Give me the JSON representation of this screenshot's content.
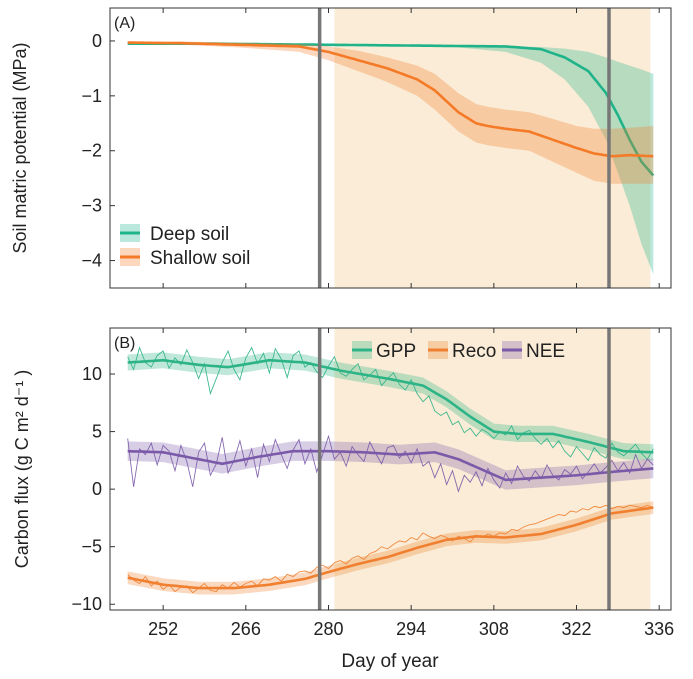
{
  "figure": {
    "xlabel": "Day of year"
  },
  "colors": {
    "deep": "#1fb38a",
    "shallow": "#f47a28",
    "gpp": "#2cb386",
    "reco": "#f08030",
    "nee": "#7a5aa8",
    "shade": "#faecd6",
    "vline": "#777777"
  },
  "chart_data": [
    {
      "type": "line",
      "panel": "(A)",
      "ylabel": "Soil matric potential (MPa)",
      "xlim": [
        243,
        338
      ],
      "ylim": [
        -4.5,
        0.6
      ],
      "xticks": [
        252,
        266,
        280,
        294,
        308,
        322,
        336
      ],
      "yticks": [
        0,
        -1,
        -2,
        -3,
        -4
      ],
      "ytick_labels": [
        "0",
        "−1",
        "−2",
        "−3",
        "−4"
      ],
      "shaded_period": [
        281,
        334.5
      ],
      "vlines": [
        278.5,
        327.5
      ],
      "legend": {
        "position": "bottom-left",
        "entries": [
          "Deep soil",
          "Shallow soil"
        ]
      },
      "series": [
        {
          "name": "Deep soil",
          "x": [
            246,
            260,
            270,
            280,
            290,
            300,
            310,
            316,
            320,
            324,
            327,
            329,
            331,
            333,
            335
          ],
          "y": [
            -0.05,
            -0.05,
            -0.06,
            -0.07,
            -0.08,
            -0.09,
            -0.1,
            -0.15,
            -0.3,
            -0.55,
            -0.95,
            -1.35,
            -1.8,
            -2.2,
            -2.45
          ],
          "lower": [
            -0.05,
            -0.05,
            -0.06,
            -0.07,
            -0.08,
            -0.1,
            -0.2,
            -0.4,
            -0.7,
            -1.2,
            -1.8,
            -2.4,
            -3.0,
            -3.7,
            -4.25
          ],
          "upper": [
            -0.05,
            -0.05,
            -0.06,
            -0.07,
            -0.08,
            -0.08,
            -0.09,
            -0.11,
            -0.14,
            -0.2,
            -0.3,
            -0.38,
            -0.45,
            -0.52,
            -0.6
          ]
        },
        {
          "name": "Shallow soil",
          "x": [
            246,
            255,
            265,
            275,
            280,
            285,
            290,
            295,
            298,
            302,
            305,
            307,
            310,
            314,
            318,
            322,
            325,
            328,
            331,
            335
          ],
          "y": [
            -0.03,
            -0.04,
            -0.07,
            -0.1,
            -0.2,
            -0.35,
            -0.5,
            -0.7,
            -0.9,
            -1.3,
            -1.5,
            -1.55,
            -1.6,
            -1.65,
            -1.8,
            -1.95,
            -2.05,
            -2.1,
            -2.08,
            -2.1
          ],
          "lower": [
            -0.05,
            -0.07,
            -0.12,
            -0.2,
            -0.35,
            -0.55,
            -0.75,
            -1.0,
            -1.25,
            -1.65,
            -1.85,
            -1.9,
            -1.95,
            -2.0,
            -2.2,
            -2.4,
            -2.55,
            -2.6,
            -2.6,
            -2.6
          ],
          "upper": [
            -0.01,
            -0.01,
            -0.03,
            -0.05,
            -0.1,
            -0.18,
            -0.3,
            -0.45,
            -0.6,
            -0.95,
            -1.15,
            -1.2,
            -1.25,
            -1.3,
            -1.42,
            -1.55,
            -1.6,
            -1.6,
            -1.58,
            -1.55
          ]
        }
      ]
    },
    {
      "type": "line",
      "panel": "(B)",
      "ylabel": "Carbon flux (g C m² d⁻¹ )",
      "xlabel": "Day of year",
      "xlim": [
        243,
        338
      ],
      "ylim": [
        -10.5,
        14
      ],
      "xticks": [
        252,
        266,
        280,
        294,
        308,
        322,
        336
      ],
      "yticks": [
        10,
        5,
        0,
        -5,
        -10
      ],
      "ytick_labels": [
        "10",
        "5",
        "0",
        "−5",
        "−10"
      ],
      "shaded_period": [
        281,
        334.5
      ],
      "vlines": [
        278.5,
        327.5
      ],
      "legend": {
        "position": "top-right",
        "entries": [
          "GPP",
          "Reco",
          "NEE"
        ]
      },
      "series": [
        {
          "name": "GPP",
          "band": 0.7,
          "x": [
            246,
            252,
            258,
            263,
            270,
            276,
            282,
            290,
            296,
            300,
            304,
            308,
            312,
            318,
            324,
            330,
            335
          ],
          "y": [
            11.0,
            11.2,
            10.8,
            10.6,
            11.2,
            11.0,
            10.3,
            9.6,
            9.0,
            7.8,
            6.3,
            5.0,
            4.8,
            4.8,
            4.1,
            3.3,
            3.2
          ],
          "daily": [
            11.5,
            10.4,
            12.3,
            11.0,
            10.6,
            11.6,
            12.0,
            10.5,
            11.4,
            10.8,
            12.1,
            11.0,
            9.6,
            10.9,
            8.3,
            9.6,
            11.0,
            12.0,
            10.4,
            9.5,
            11.4,
            12.3,
            10.9,
            11.8,
            10.1,
            12.2,
            11.3,
            9.7,
            11.6,
            12.0,
            10.6,
            11.0,
            10.2,
            9.7,
            10.7,
            11.5,
            10.1,
            9.8,
            10.4,
            10.9,
            9.5,
            9.9,
            10.4,
            9.0,
            9.6,
            10.1,
            9.1,
            8.6,
            9.5,
            8.3,
            7.6,
            8.1,
            6.8,
            6.4,
            6.7,
            5.6,
            5.9,
            4.9,
            5.3,
            4.6,
            5.2,
            4.9,
            4.4,
            5.0,
            4.7,
            5.5,
            4.3,
            4.9,
            5.1,
            4.4,
            3.9,
            4.4,
            3.6,
            4.2,
            3.3,
            2.8,
            3.7,
            3.1,
            2.5,
            3.6,
            3.0,
            2.7,
            4.0,
            3.2,
            2.9,
            3.4,
            3.9,
            3.1,
            2.6,
            3.5
          ]
        },
        {
          "name": "Reco",
          "band": 0.55,
          "x": [
            246,
            252,
            258,
            264,
            270,
            276,
            280,
            285,
            290,
            295,
            300,
            305,
            310,
            316,
            322,
            328,
            335
          ],
          "y": [
            -7.7,
            -8.3,
            -8.6,
            -8.6,
            -8.3,
            -7.8,
            -7.2,
            -6.5,
            -5.9,
            -5.1,
            -4.4,
            -4.1,
            -4.2,
            -3.9,
            -3.1,
            -2.1,
            -1.6
          ],
          "daily": [
            -7.4,
            -7.9,
            -8.2,
            -7.6,
            -8.4,
            -8.0,
            -8.7,
            -8.3,
            -8.9,
            -8.5,
            -8.4,
            -9.0,
            -8.6,
            -8.2,
            -8.8,
            -8.9,
            -8.3,
            -8.6,
            -8.1,
            -8.5,
            -8.2,
            -8.0,
            -8.4,
            -7.8,
            -7.9,
            -7.6,
            -8.0,
            -7.4,
            -7.6,
            -7.2,
            -7.1,
            -7.3,
            -6.8,
            -6.6,
            -6.9,
            -6.4,
            -6.2,
            -6.5,
            -6.0,
            -5.8,
            -6.1,
            -5.6,
            -5.4,
            -5.0,
            -5.2,
            -4.8,
            -4.5,
            -4.6,
            -4.2,
            -4.4,
            -3.8,
            -4.1,
            -4.3,
            -4.0,
            -4.2,
            -4.5,
            -4.1,
            -4.3,
            -4.6,
            -4.0,
            -4.2,
            -3.9,
            -4.1,
            -3.8,
            -3.9,
            -3.5,
            -3.6,
            -3.3,
            -3.1,
            -3.0,
            -2.8,
            -2.6,
            -2.4,
            -2.2,
            -2.3,
            -1.9,
            -2.0,
            -1.7,
            -1.8,
            -1.5,
            -1.6,
            -1.4,
            -1.7,
            -1.5,
            -1.6,
            -1.4,
            -1.5,
            -1.6,
            -1.4,
            -1.6
          ]
        },
        {
          "name": "NEE",
          "band": 0.85,
          "x": [
            246,
            252,
            258,
            262,
            268,
            274,
            280,
            286,
            292,
            298,
            302,
            306,
            310,
            316,
            322,
            328,
            335
          ],
          "y": [
            3.3,
            3.2,
            2.6,
            2.2,
            2.8,
            3.3,
            3.3,
            3.2,
            3.0,
            3.2,
            2.6,
            1.7,
            0.8,
            1.0,
            1.2,
            1.5,
            1.8
          ],
          "daily": [
            4.4,
            0.2,
            3.5,
            3.0,
            4.0,
            2.1,
            3.8,
            3.3,
            1.6,
            3.8,
            2.4,
            0.2,
            3.2,
            4.0,
            1.2,
            2.2,
            4.5,
            1.4,
            2.5,
            4.2,
            2.0,
            3.5,
            1.0,
            3.9,
            2.4,
            4.3,
            3.0,
            1.8,
            3.4,
            4.3,
            2.2,
            3.5,
            1.5,
            3.0,
            4.6,
            2.6,
            3.2,
            2.0,
            3.7,
            3.0,
            2.4,
            4.1,
            3.1,
            2.2,
            3.6,
            3.8,
            2.7,
            3.3,
            2.3,
            3.5,
            2.0,
            2.4,
            1.0,
            2.2,
            0.4,
            1.6,
            -0.2,
            1.2,
            0.6,
            1.5,
            0.3,
            1.8,
            0.8,
            0.1,
            1.4,
            0.5,
            2.0,
            1.1,
            0.7,
            1.6,
            0.9,
            2.1,
            1.2,
            0.8,
            1.7,
            1.3,
            2.0,
            0.9,
            1.5,
            2.2,
            1.4,
            1.9,
            2.5,
            1.6,
            2.3,
            1.4,
            3.0,
            1.8,
            2.6,
            2.1
          ]
        }
      ]
    }
  ]
}
